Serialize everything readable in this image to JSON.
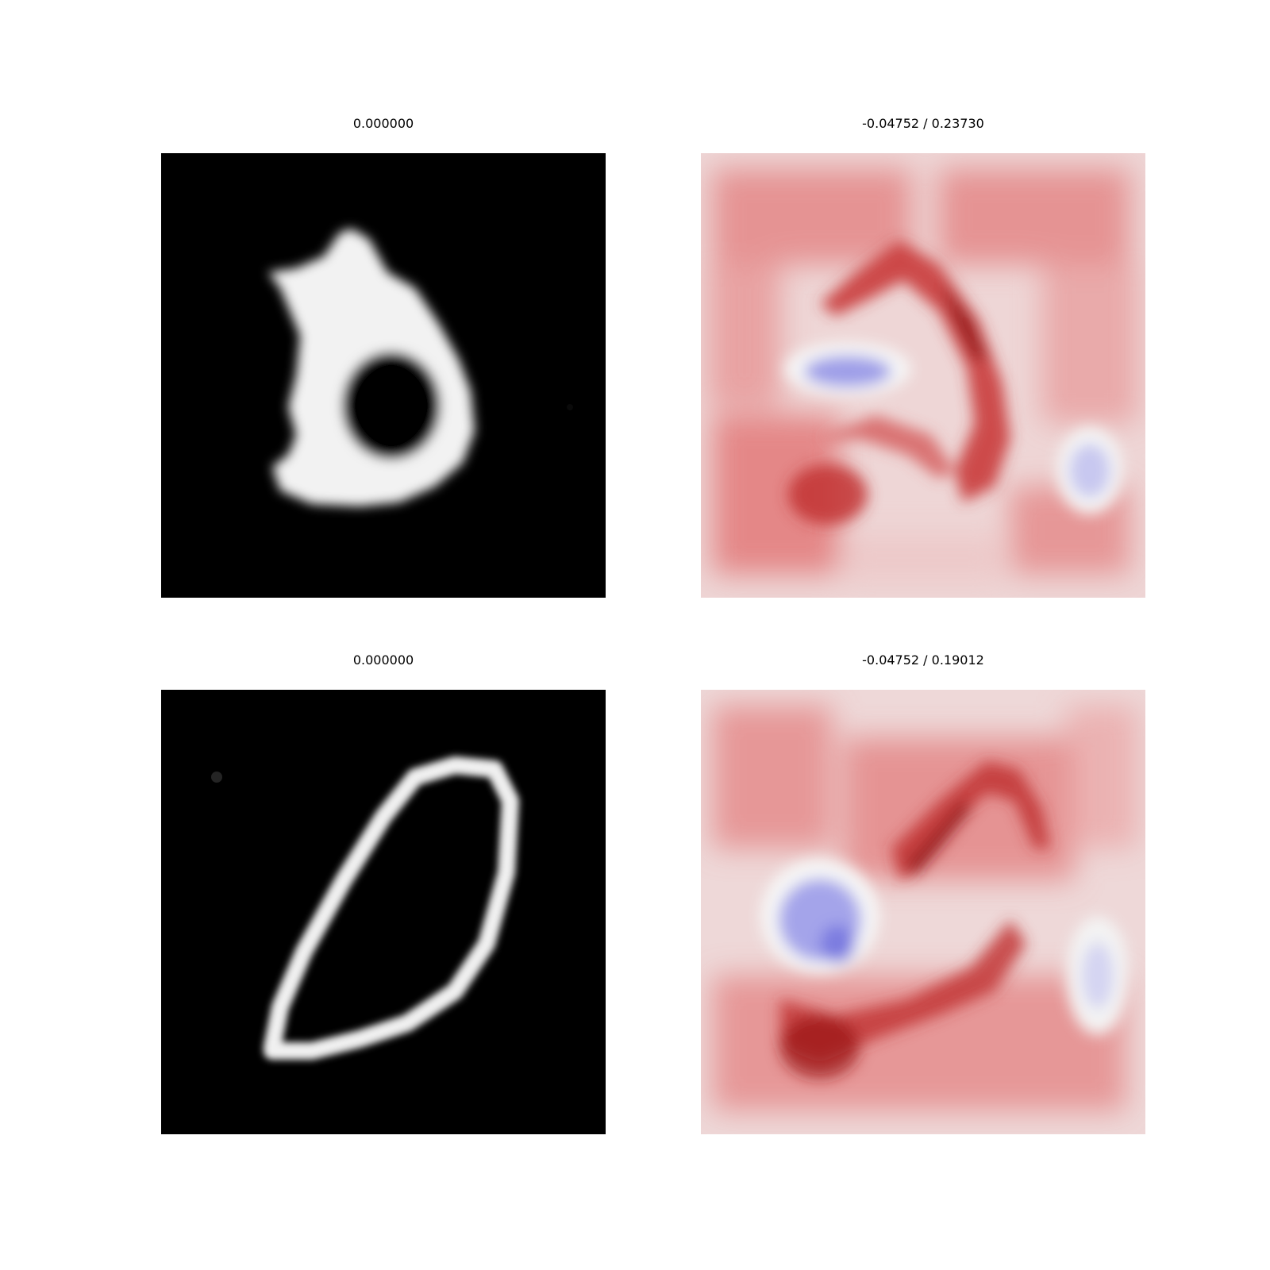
{
  "panels": [
    {
      "title": "0.000000",
      "kind": "image"
    },
    {
      "title": "-0.04752 / 0.23730",
      "kind": "heatmap"
    },
    {
      "title": "0.000000",
      "kind": "image"
    },
    {
      "title": "-0.04752 / 0.19012",
      "kind": "heatmap"
    }
  ],
  "colors": {
    "background": "#ffffff",
    "image_background": "#000000",
    "image_foreground": "#ffffff",
    "heatmap_positive": "#b2182b",
    "heatmap_neutral": "#f2f2f2",
    "heatmap_negative": "#4a4ad6"
  }
}
